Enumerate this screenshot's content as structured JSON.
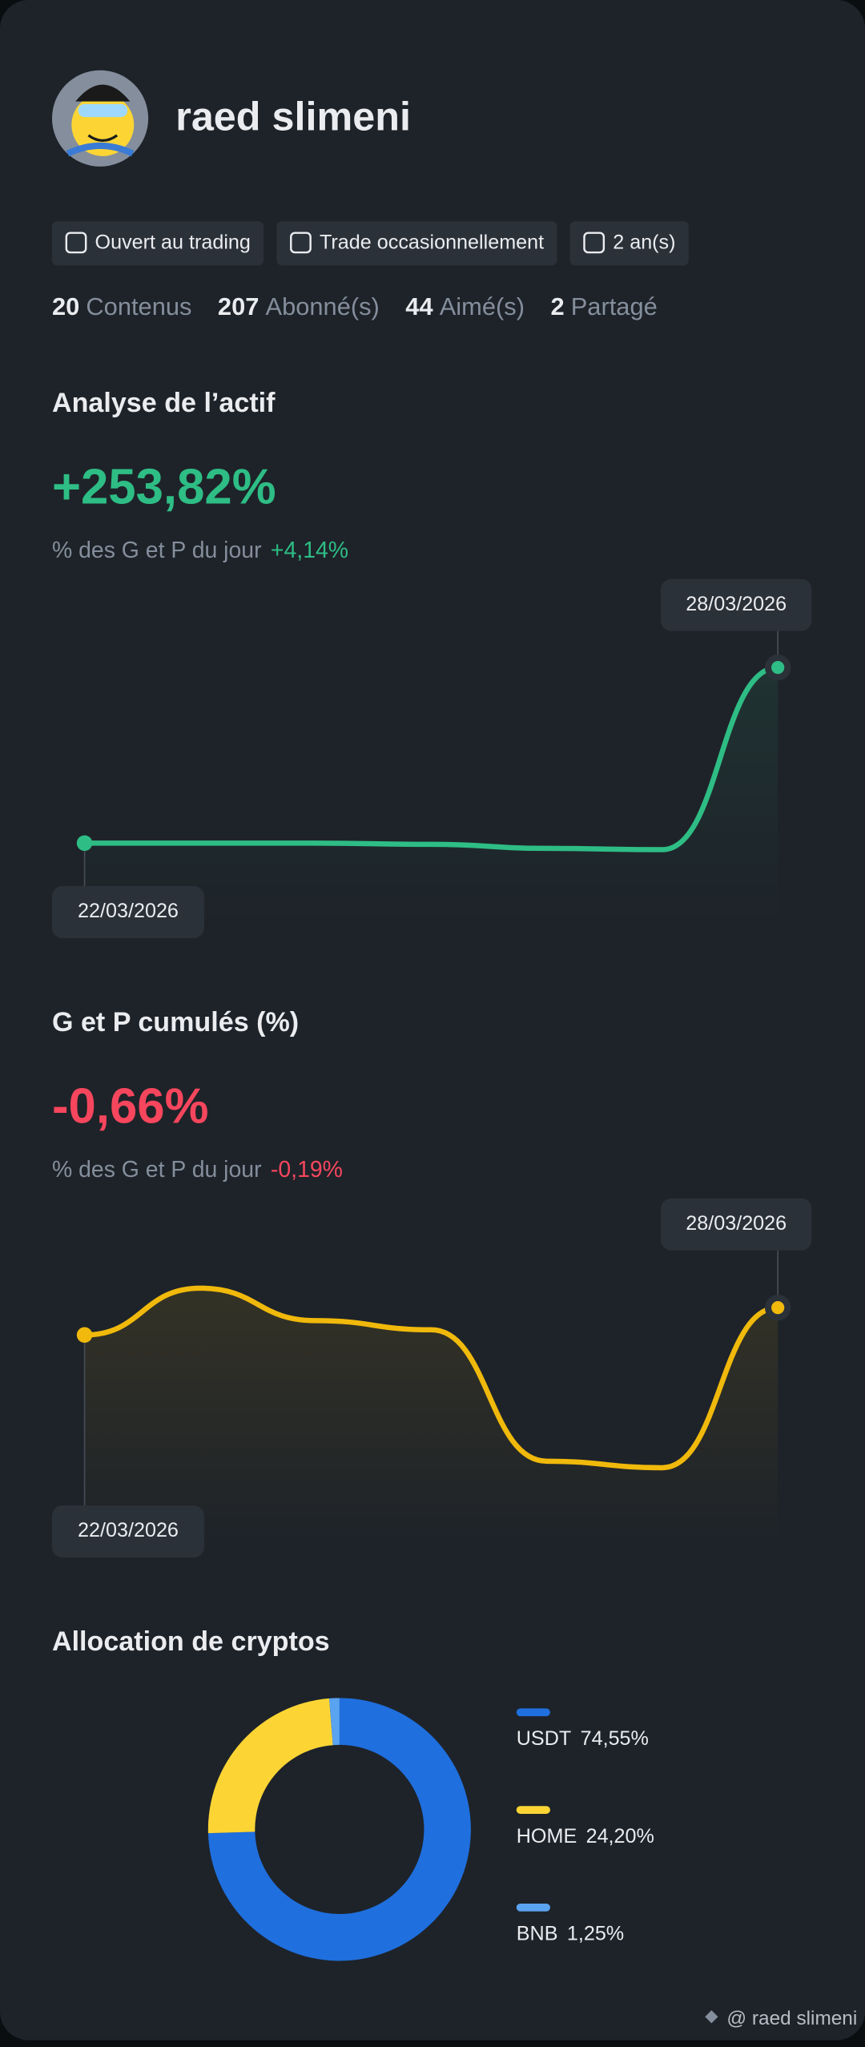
{
  "profile": {
    "name": "raed slimeni",
    "tags": [
      "Ouvert au trading",
      "Trade occasionnellement",
      "2 an(s)"
    ],
    "stats": [
      {
        "value": 20,
        "label": "Contenus"
      },
      {
        "value": 207,
        "label": "Abonné(s)"
      },
      {
        "value": 44,
        "label": "Aimé(s)"
      },
      {
        "value": 2,
        "label": "Partagé"
      }
    ]
  },
  "chart_data": [
    {
      "type": "line",
      "title": "Analyse de l’actif",
      "summary": "+253,82%",
      "summary_color": "#2ebd85",
      "subtitle": "% des G et P du jour",
      "daily_change": "+4,14%",
      "color": "#2ebd85",
      "categories": [
        "22/03/2026",
        null,
        null,
        null,
        null,
        null,
        "28/03/2026"
      ],
      "values": [
        3.6,
        3.6,
        3.6,
        2.9,
        0.7,
        0,
        100
      ]
    },
    {
      "type": "line",
      "title": "G et P cumulés (%)",
      "summary": "-0,66%",
      "summary_color": "#f6465d",
      "subtitle": "% des G et P du jour",
      "daily_change": "-0,19%",
      "color": "#f0b90b",
      "categories": [
        "22/03/2026",
        null,
        null,
        null,
        null,
        null,
        "28/03/2026"
      ],
      "values": [
        10.2,
        13.8,
        11.3,
        10.6,
        0.5,
        0,
        12.3
      ]
    },
    {
      "type": "pie",
      "title": "Allocation de cryptos",
      "categories": [
        "USDT",
        "HOME",
        "BNB"
      ],
      "values": [
        74.55,
        24.2,
        1.25
      ],
      "value_labels": [
        "74,55%",
        "24,20%",
        "1,25%"
      ],
      "colors": [
        "#1f6fde",
        "#fcd535",
        "#5aa3f0"
      ]
    }
  ],
  "footer": "@ raed slimeni"
}
